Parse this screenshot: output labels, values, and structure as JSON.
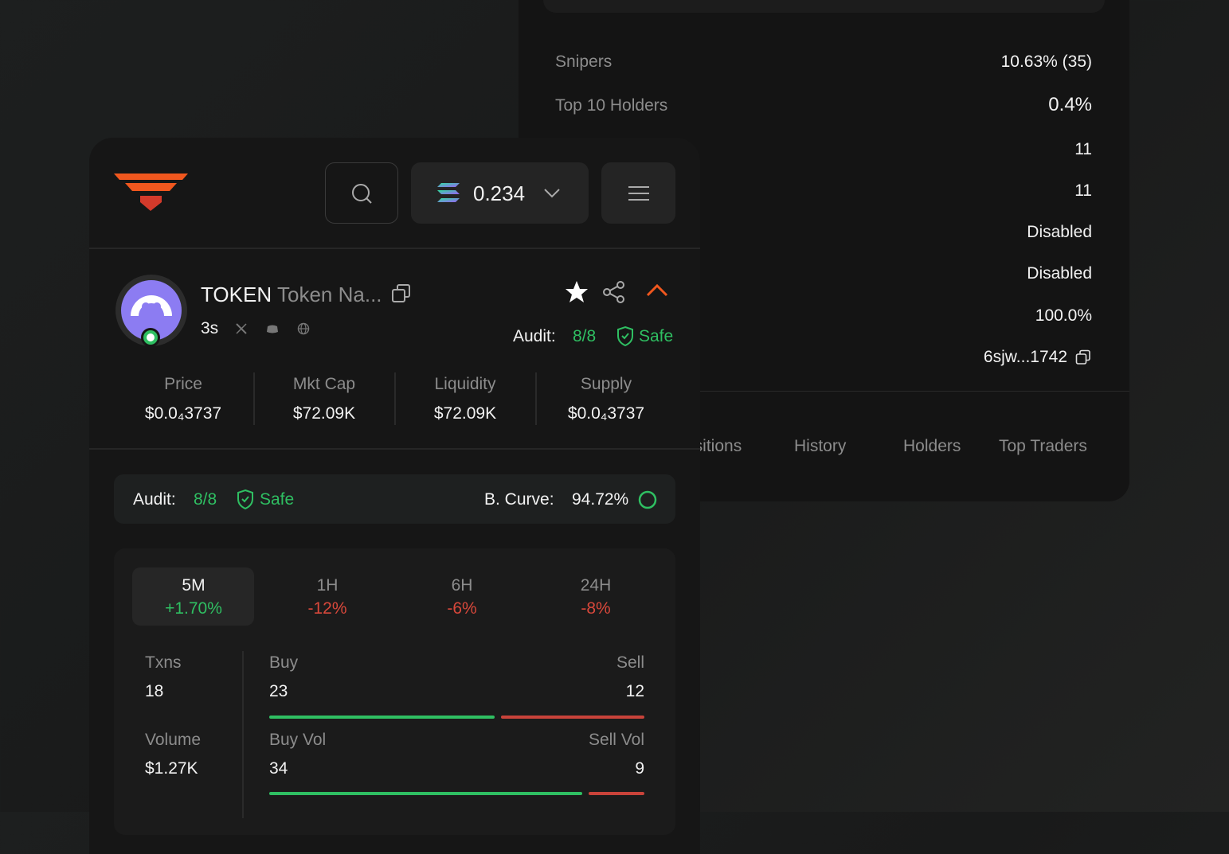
{
  "back_panel": {
    "rows": [
      {
        "label": "Snipers",
        "value": "10.63% (35)"
      },
      {
        "label": "Top 10 Holders",
        "value": "0.4%"
      },
      {
        "value": "11"
      },
      {
        "value": "11"
      },
      {
        "value": "Disabled"
      },
      {
        "value": "Disabled"
      },
      {
        "value": "100.0%"
      },
      {
        "value": "6sjw...1742"
      }
    ],
    "tabs": [
      "Positions",
      "History",
      "Holders",
      "Top Traders"
    ]
  },
  "header": {
    "balance": "0.234"
  },
  "token": {
    "symbol": "TOKEN",
    "name": "Token Na...",
    "age": "3s",
    "audit_label": "Audit:",
    "audit_score": "8/8",
    "audit_status": "Safe"
  },
  "stats": [
    {
      "label": "Price",
      "value": "$0.0₄3737"
    },
    {
      "label": "Mkt Cap",
      "value": "$72.09K"
    },
    {
      "label": "Liquidity",
      "value": "$72.09K"
    },
    {
      "label": "Supply",
      "value": "$0.0₄3737"
    }
  ],
  "audit_bar": {
    "audit_label": "Audit:",
    "audit_score": "8/8",
    "audit_status": "Safe",
    "curve_label": "B. Curve:",
    "curve_value": "94.72%"
  },
  "timeframes": [
    {
      "label": "5M",
      "change": "+1.70%"
    },
    {
      "label": "1H",
      "change": "-12%"
    },
    {
      "label": "6H",
      "change": "-6%"
    },
    {
      "label": "24H",
      "change": "-8%"
    }
  ],
  "trades": {
    "txns_label": "Txns",
    "txns": "18",
    "buy_label": "Buy",
    "buy": "23",
    "sell_label": "Sell",
    "sell": "12",
    "volume_label": "Volume",
    "volume": "$1.27K",
    "buy_vol_label": "Buy Vol",
    "buy_vol": "34",
    "sell_vol_label": "Sell Vol",
    "sell_vol": "9"
  }
}
